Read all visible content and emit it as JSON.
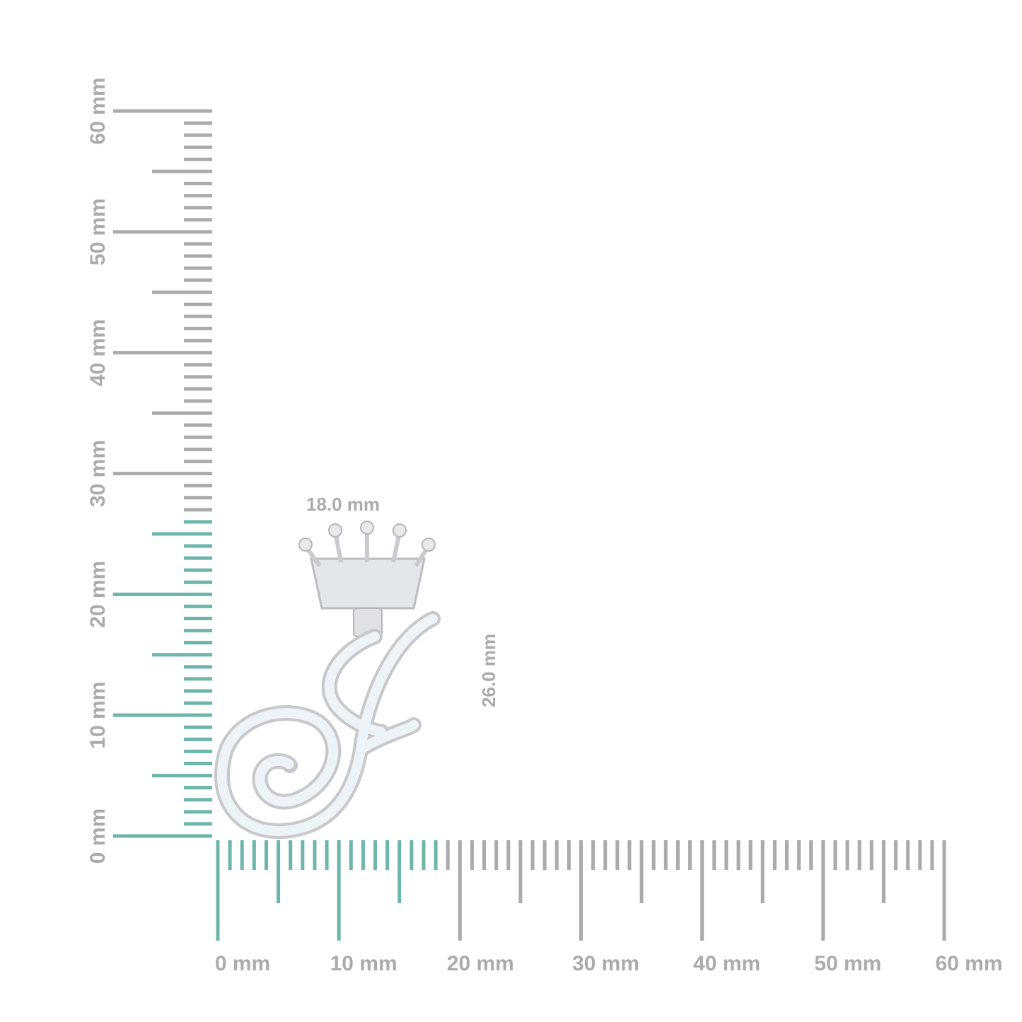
{
  "colors": {
    "highlight": "#6cb6ac",
    "ruler": "#ababab",
    "metal": "#d9dadc",
    "stone": "#eef3f7"
  },
  "vertical_ruler": {
    "labels": [
      "0 mm",
      "10 mm",
      "20 mm",
      "30 mm",
      "40 mm",
      "50 mm",
      "60 mm"
    ],
    "max_mm": 60,
    "highlight_to_mm": 26
  },
  "horizontal_ruler": {
    "labels": [
      "0 mm",
      "10 mm",
      "20 mm",
      "30 mm",
      "40 mm",
      "50 mm",
      "60 mm"
    ],
    "max_mm": 60,
    "highlight_to_mm": 18
  },
  "dimensions": {
    "width_label": "18.0 mm",
    "height_label": "26.0 mm"
  },
  "product": {
    "icon": "crown-initial-j-pendant"
  }
}
